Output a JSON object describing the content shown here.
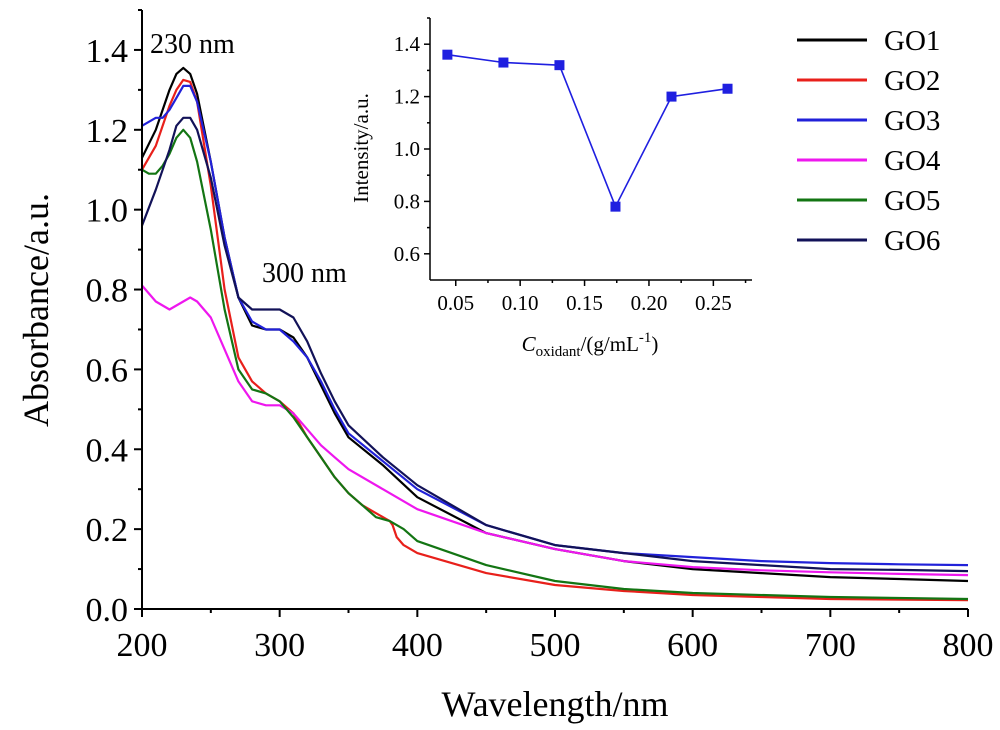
{
  "chart_data": [
    {
      "type": "line",
      "xlabel": "Wavelength/nm",
      "ylabel": "Absorbance/a.u.",
      "xlim": [
        200,
        800
      ],
      "ylim": [
        0,
        1.5
      ],
      "xticks": [
        200,
        300,
        400,
        500,
        600,
        700,
        800
      ],
      "yticks": [
        0.0,
        0.2,
        0.4,
        0.6,
        0.8,
        1.0,
        1.2,
        1.4
      ],
      "xtick_labels": [
        "200",
        "300",
        "400",
        "500",
        "600",
        "700",
        "800"
      ],
      "ytick_labels": [
        "0.0",
        "0.2",
        "0.4",
        "0.6",
        "0.8",
        "1.0",
        "1.2",
        "1.4"
      ],
      "grid": false,
      "legend_position": "top-right",
      "annotations": [
        {
          "text": "230 nm",
          "x": 235,
          "y": 1.4
        },
        {
          "text": "300 nm",
          "x": 305,
          "y": 0.82
        }
      ],
      "series": [
        {
          "name": "GO1",
          "color": "#000000",
          "x": [
            200,
            210,
            220,
            225,
            230,
            235,
            240,
            250,
            260,
            270,
            280,
            290,
            300,
            310,
            320,
            330,
            340,
            350,
            375,
            400,
            450,
            500,
            550,
            600,
            650,
            700,
            750,
            800
          ],
          "y": [
            1.13,
            1.2,
            1.3,
            1.34,
            1.355,
            1.34,
            1.29,
            1.12,
            0.93,
            0.78,
            0.71,
            0.7,
            0.7,
            0.68,
            0.63,
            0.56,
            0.49,
            0.43,
            0.36,
            0.28,
            0.19,
            0.15,
            0.12,
            0.1,
            0.09,
            0.08,
            0.075,
            0.07
          ]
        },
        {
          "name": "GO2",
          "color": "#e8201b",
          "x": [
            200,
            210,
            220,
            225,
            230,
            235,
            240,
            250,
            260,
            270,
            280,
            290,
            300,
            310,
            320,
            330,
            340,
            350,
            360,
            370,
            380,
            382,
            385,
            390,
            400,
            450,
            500,
            550,
            600,
            650,
            700,
            800
          ],
          "y": [
            1.1,
            1.16,
            1.26,
            1.3,
            1.325,
            1.32,
            1.27,
            1.06,
            0.8,
            0.63,
            0.57,
            0.54,
            0.52,
            0.49,
            0.43,
            0.38,
            0.33,
            0.29,
            0.26,
            0.24,
            0.22,
            0.21,
            0.18,
            0.16,
            0.14,
            0.09,
            0.06,
            0.045,
            0.035,
            0.03,
            0.025,
            0.022
          ]
        },
        {
          "name": "GO3",
          "color": "#2121d9",
          "x": [
            200,
            205,
            210,
            215,
            220,
            225,
            230,
            235,
            240,
            250,
            260,
            270,
            280,
            290,
            300,
            310,
            320,
            330,
            340,
            350,
            375,
            400,
            450,
            500,
            550,
            600,
            650,
            700,
            750,
            800
          ],
          "y": [
            1.21,
            1.22,
            1.23,
            1.23,
            1.25,
            1.28,
            1.31,
            1.31,
            1.27,
            1.12,
            0.93,
            0.78,
            0.72,
            0.7,
            0.7,
            0.67,
            0.63,
            0.57,
            0.5,
            0.44,
            0.37,
            0.3,
            0.21,
            0.16,
            0.14,
            0.13,
            0.12,
            0.115,
            0.112,
            0.11
          ]
        },
        {
          "name": "GO4",
          "color": "#ee17ee",
          "x": [
            200,
            210,
            220,
            230,
            235,
            240,
            250,
            260,
            270,
            280,
            290,
            300,
            310,
            320,
            330,
            340,
            350,
            375,
            400,
            450,
            500,
            550,
            600,
            650,
            700,
            750,
            800
          ],
          "y": [
            0.81,
            0.77,
            0.75,
            0.77,
            0.78,
            0.77,
            0.73,
            0.65,
            0.57,
            0.52,
            0.51,
            0.51,
            0.49,
            0.45,
            0.41,
            0.38,
            0.35,
            0.3,
            0.25,
            0.19,
            0.15,
            0.12,
            0.105,
            0.097,
            0.092,
            0.088,
            0.085
          ]
        },
        {
          "name": "GO5",
          "color": "#137513",
          "x": [
            200,
            205,
            210,
            215,
            220,
            225,
            230,
            235,
            240,
            250,
            260,
            270,
            280,
            290,
            300,
            310,
            320,
            330,
            340,
            350,
            360,
            370,
            380,
            390,
            400,
            450,
            500,
            550,
            600,
            700,
            800
          ],
          "y": [
            1.1,
            1.09,
            1.09,
            1.11,
            1.14,
            1.18,
            1.2,
            1.18,
            1.12,
            0.95,
            0.75,
            0.6,
            0.55,
            0.54,
            0.52,
            0.48,
            0.43,
            0.38,
            0.33,
            0.29,
            0.26,
            0.23,
            0.22,
            0.2,
            0.17,
            0.11,
            0.07,
            0.05,
            0.04,
            0.03,
            0.025
          ]
        },
        {
          "name": "GO6",
          "color": "#121258",
          "x": [
            200,
            210,
            220,
            225,
            230,
            235,
            240,
            250,
            260,
            270,
            280,
            290,
            300,
            310,
            320,
            330,
            340,
            350,
            375,
            400,
            450,
            500,
            550,
            600,
            650,
            700,
            750,
            800
          ],
          "y": [
            0.96,
            1.05,
            1.15,
            1.21,
            1.23,
            1.23,
            1.2,
            1.08,
            0.91,
            0.78,
            0.75,
            0.75,
            0.75,
            0.73,
            0.67,
            0.59,
            0.52,
            0.46,
            0.38,
            0.31,
            0.21,
            0.16,
            0.14,
            0.12,
            0.11,
            0.1,
            0.098,
            0.095
          ]
        }
      ]
    },
    {
      "type": "line",
      "xlabel": "C",
      "xlabel_sub": "oxidant",
      "xlabel_rest": "/(g/mL",
      "xlabel_sup": "-1",
      "xlabel_end": ")",
      "ylabel": "Intensity/a.u.",
      "xlim": [
        0.03,
        0.28
      ],
      "ylim": [
        0.5,
        1.5
      ],
      "xticks": [
        0.05,
        0.1,
        0.15,
        0.2,
        0.25
      ],
      "yticks": [
        0.6,
        0.8,
        1.0,
        1.2,
        1.4
      ],
      "xtick_labels": [
        "0.05",
        "0.10",
        "0.15",
        "0.20",
        "0.25"
      ],
      "ytick_labels": [
        "0.6",
        "0.8",
        "1.0",
        "1.2",
        "1.4"
      ],
      "grid": false,
      "markers": "square",
      "series": [
        {
          "color": "#1f1fe0",
          "x": [
            0.0435,
            0.087,
            0.1305,
            0.174,
            0.2175,
            0.261
          ],
          "y": [
            1.36,
            1.33,
            1.32,
            0.78,
            1.2,
            1.23
          ]
        }
      ]
    }
  ]
}
